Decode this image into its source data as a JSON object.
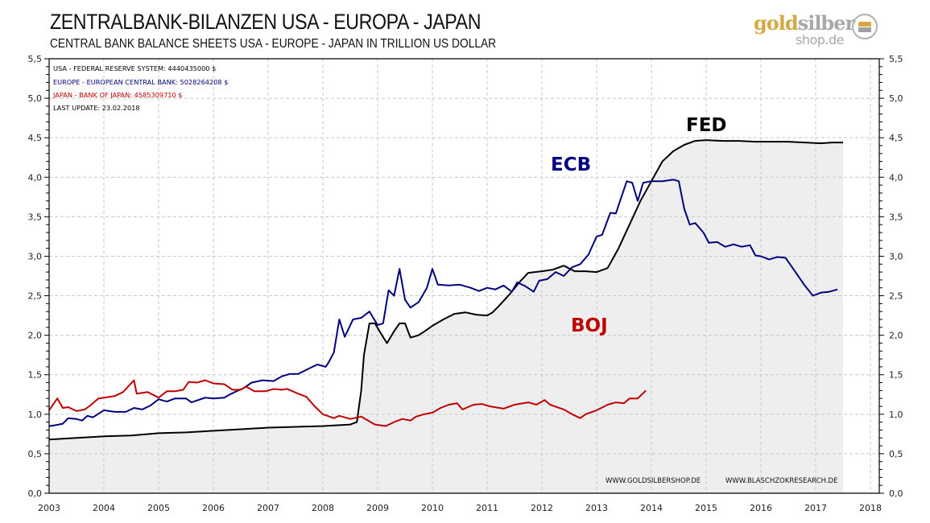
{
  "header": {
    "title": "ZENTRALBANK-BILANZEN  USA - EUROPA - JAPAN",
    "subtitle": "CENTRAL BANK BALANCE SHEETS USA - EUROPE - JAPAN IN TRILLION US DOLLAR"
  },
  "logo": {
    "part1": "gold",
    "part2": "silber",
    "part3": "shop.de",
    "icon": "gold-silver-bars-coin-icon"
  },
  "colors": {
    "fed": "#000000",
    "ecb": "#000080",
    "boj": "#c00000",
    "fill": "#eeeeee",
    "grid": "#c8c8c8"
  },
  "chart_data": {
    "type": "line",
    "title": "ZENTRALBANK-BILANZEN  USA - EUROPA - JAPAN",
    "subtitle": "CENTRAL BANK BALANCE SHEETS USA - EUROPE - JAPAN IN TRILLION US DOLLAR",
    "xlabel": "",
    "ylabel": "",
    "xlim": [
      2003,
      2018.15
    ],
    "ylim": [
      0,
      5.5
    ],
    "x_ticks": [
      "2003",
      "2004",
      "2005",
      "2006",
      "2007",
      "2008",
      "2009",
      "2010",
      "2011",
      "2012",
      "2013",
      "2014",
      "2015",
      "2016",
      "2017",
      "2018"
    ],
    "y_ticks": [
      "0,0",
      "0,5",
      "1,0",
      "1,5",
      "2,0",
      "2,5",
      "3,0",
      "3,5",
      "4,0",
      "4,5",
      "5,0",
      "5,5"
    ],
    "grid": true,
    "legend": [
      "USA - FEDERAL RESERVE SYSTEM: 4440435000  $",
      "EUROPE - EUROPEAN CENTRAL BANK: 5028264208  $",
      "JAPAN  - BANK OF JAPAN: 4585309710  $",
      "LAST UPDATE: 23.02.2018"
    ],
    "legend_position": "top-left",
    "annotations": [
      "FED",
      "ECB",
      "BOJ"
    ],
    "credits": [
      "WWW.GOLDSILBERSHOP.DE",
      "WWW.BLASCHZOKRESEARCH.DE"
    ],
    "series": [
      {
        "name": "FED",
        "label": "FED",
        "filled": true,
        "points": [
          [
            2003.0,
            0.68
          ],
          [
            2003.5,
            0.7
          ],
          [
            2004.0,
            0.72
          ],
          [
            2004.5,
            0.73
          ],
          [
            2005.0,
            0.76
          ],
          [
            2005.5,
            0.77
          ],
          [
            2006.0,
            0.79
          ],
          [
            2006.5,
            0.81
          ],
          [
            2007.0,
            0.83
          ],
          [
            2007.5,
            0.84
          ],
          [
            2008.0,
            0.85
          ],
          [
            2008.5,
            0.87
          ],
          [
            2008.62,
            0.9
          ],
          [
            2008.7,
            1.3
          ],
          [
            2008.75,
            1.75
          ],
          [
            2008.85,
            2.15
          ],
          [
            2008.95,
            2.15
          ],
          [
            2009.08,
            2.0
          ],
          [
            2009.17,
            1.9
          ],
          [
            2009.3,
            2.05
          ],
          [
            2009.4,
            2.15
          ],
          [
            2009.5,
            2.15
          ],
          [
            2009.6,
            1.97
          ],
          [
            2009.75,
            2.0
          ],
          [
            2009.9,
            2.07
          ],
          [
            2010.0,
            2.12
          ],
          [
            2010.2,
            2.2
          ],
          [
            2010.4,
            2.27
          ],
          [
            2010.6,
            2.29
          ],
          [
            2010.8,
            2.26
          ],
          [
            2011.0,
            2.25
          ],
          [
            2011.1,
            2.29
          ],
          [
            2011.2,
            2.36
          ],
          [
            2011.4,
            2.51
          ],
          [
            2011.6,
            2.68
          ],
          [
            2011.75,
            2.79
          ],
          [
            2012.0,
            2.81
          ],
          [
            2012.2,
            2.83
          ],
          [
            2012.4,
            2.88
          ],
          [
            2012.6,
            2.81
          ],
          [
            2012.8,
            2.81
          ],
          [
            2013.0,
            2.8
          ],
          [
            2013.2,
            2.85
          ],
          [
            2013.4,
            3.1
          ],
          [
            2013.6,
            3.4
          ],
          [
            2013.8,
            3.7
          ],
          [
            2014.0,
            3.95
          ],
          [
            2014.2,
            4.2
          ],
          [
            2014.4,
            4.33
          ],
          [
            2014.6,
            4.41
          ],
          [
            2014.8,
            4.46
          ],
          [
            2015.0,
            4.47
          ],
          [
            2015.3,
            4.46
          ],
          [
            2015.6,
            4.46
          ],
          [
            2015.9,
            4.45
          ],
          [
            2016.2,
            4.45
          ],
          [
            2016.5,
            4.45
          ],
          [
            2016.8,
            4.44
          ],
          [
            2017.1,
            4.43
          ],
          [
            2017.3,
            4.44
          ],
          [
            2017.5,
            4.44
          ]
        ]
      },
      {
        "name": "ECB",
        "label": "ECB",
        "filled": false,
        "points": [
          [
            2003.0,
            0.85
          ],
          [
            2003.1,
            0.86
          ],
          [
            2003.25,
            0.88
          ],
          [
            2003.35,
            0.95
          ],
          [
            2003.5,
            0.94
          ],
          [
            2003.6,
            0.92
          ],
          [
            2003.7,
            0.98
          ],
          [
            2003.8,
            0.96
          ],
          [
            2004.0,
            1.05
          ],
          [
            2004.2,
            1.03
          ],
          [
            2004.4,
            1.03
          ],
          [
            2004.55,
            1.08
          ],
          [
            2004.7,
            1.06
          ],
          [
            2004.85,
            1.11
          ],
          [
            2005.0,
            1.19
          ],
          [
            2005.15,
            1.16
          ],
          [
            2005.3,
            1.2
          ],
          [
            2005.5,
            1.2
          ],
          [
            2005.6,
            1.15
          ],
          [
            2005.85,
            1.21
          ],
          [
            2006.0,
            1.2
          ],
          [
            2006.2,
            1.21
          ],
          [
            2006.3,
            1.25
          ],
          [
            2006.45,
            1.3
          ],
          [
            2006.55,
            1.33
          ],
          [
            2006.7,
            1.4
          ],
          [
            2006.9,
            1.43
          ],
          [
            2007.1,
            1.42
          ],
          [
            2007.25,
            1.48
          ],
          [
            2007.4,
            1.51
          ],
          [
            2007.55,
            1.51
          ],
          [
            2007.75,
            1.58
          ],
          [
            2007.9,
            1.63
          ],
          [
            2008.05,
            1.6
          ],
          [
            2008.1,
            1.65
          ],
          [
            2008.2,
            1.78
          ],
          [
            2008.3,
            2.2
          ],
          [
            2008.4,
            1.98
          ],
          [
            2008.55,
            2.2
          ],
          [
            2008.7,
            2.22
          ],
          [
            2008.85,
            2.3
          ],
          [
            2009.0,
            2.13
          ],
          [
            2009.1,
            2.15
          ],
          [
            2009.2,
            2.57
          ],
          [
            2009.3,
            2.5
          ],
          [
            2009.4,
            2.84
          ],
          [
            2009.5,
            2.45
          ],
          [
            2009.6,
            2.35
          ],
          [
            2009.75,
            2.42
          ],
          [
            2009.9,
            2.6
          ],
          [
            2010.0,
            2.84
          ],
          [
            2010.1,
            2.64
          ],
          [
            2010.3,
            2.63
          ],
          [
            2010.5,
            2.64
          ],
          [
            2010.7,
            2.6
          ],
          [
            2010.85,
            2.56
          ],
          [
            2011.0,
            2.6
          ],
          [
            2011.15,
            2.58
          ],
          [
            2011.3,
            2.63
          ],
          [
            2011.45,
            2.55
          ],
          [
            2011.55,
            2.67
          ],
          [
            2011.7,
            2.62
          ],
          [
            2011.85,
            2.55
          ],
          [
            2011.95,
            2.69
          ],
          [
            2012.1,
            2.71
          ],
          [
            2012.25,
            2.8
          ],
          [
            2012.4,
            2.75
          ],
          [
            2012.55,
            2.86
          ],
          [
            2012.7,
            2.9
          ],
          [
            2012.85,
            3.02
          ],
          [
            2013.0,
            3.25
          ],
          [
            2013.1,
            3.27
          ],
          [
            2013.25,
            3.55
          ],
          [
            2013.35,
            3.54
          ],
          [
            2013.55,
            3.95
          ],
          [
            2013.65,
            3.93
          ],
          [
            2013.75,
            3.7
          ],
          [
            2013.85,
            3.93
          ],
          [
            2014.0,
            3.95
          ],
          [
            2014.2,
            3.95
          ],
          [
            2014.4,
            3.97
          ],
          [
            2014.5,
            3.95
          ]
        ]
      },
      {
        "name": "BOJ",
        "label": "BOJ",
        "filled": false,
        "points": [
          [
            2003.0,
            1.05
          ],
          [
            2003.15,
            1.2
          ],
          [
            2003.25,
            1.08
          ],
          [
            2003.35,
            1.09
          ],
          [
            2003.5,
            1.04
          ],
          [
            2003.65,
            1.06
          ],
          [
            2003.75,
            1.11
          ],
          [
            2003.9,
            1.2
          ],
          [
            2004.0,
            1.21
          ],
          [
            2004.2,
            1.23
          ],
          [
            2004.35,
            1.28
          ],
          [
            2004.55,
            1.43
          ],
          [
            2004.6,
            1.26
          ],
          [
            2004.8,
            1.28
          ],
          [
            2005.0,
            1.21
          ],
          [
            2005.15,
            1.29
          ],
          [
            2005.3,
            1.29
          ],
          [
            2005.45,
            1.31
          ],
          [
            2005.55,
            1.41
          ],
          [
            2005.7,
            1.4
          ],
          [
            2005.85,
            1.43
          ],
          [
            2006.0,
            1.39
          ],
          [
            2006.2,
            1.38
          ],
          [
            2006.35,
            1.31
          ],
          [
            2006.5,
            1.31
          ],
          [
            2006.6,
            1.35
          ],
          [
            2006.75,
            1.29
          ],
          [
            2006.95,
            1.29
          ],
          [
            2007.1,
            1.32
          ],
          [
            2007.25,
            1.31
          ],
          [
            2007.35,
            1.32
          ],
          [
            2007.55,
            1.26
          ],
          [
            2007.7,
            1.22
          ],
          [
            2007.85,
            1.1
          ],
          [
            2008.0,
            1.0
          ],
          [
            2008.2,
            0.95
          ],
          [
            2008.3,
            0.98
          ],
          [
            2008.5,
            0.94
          ],
          [
            2008.7,
            0.97
          ],
          [
            2008.95,
            0.87
          ],
          [
            2009.15,
            0.85
          ],
          [
            2009.3,
            0.9
          ],
          [
            2009.45,
            0.94
          ],
          [
            2009.6,
            0.92
          ],
          [
            2009.7,
            0.97
          ],
          [
            2009.85,
            1.0
          ],
          [
            2010.0,
            1.02
          ],
          [
            2010.15,
            1.08
          ],
          [
            2010.3,
            1.12
          ],
          [
            2010.45,
            1.14
          ],
          [
            2010.55,
            1.06
          ],
          [
            2010.75,
            1.12
          ],
          [
            2010.9,
            1.13
          ],
          [
            2011.05,
            1.1
          ],
          [
            2011.3,
            1.07
          ],
          [
            2011.5,
            1.12
          ],
          [
            2011.75,
            1.15
          ],
          [
            2011.9,
            1.12
          ],
          [
            2012.05,
            1.18
          ],
          [
            2012.15,
            1.12
          ],
          [
            2012.4,
            1.06
          ],
          [
            2012.55,
            1.0
          ],
          [
            2012.7,
            0.95
          ],
          [
            2012.8,
            1.0
          ],
          [
            2013.0,
            1.05
          ],
          [
            2013.2,
            1.12
          ],
          [
            2013.35,
            1.15
          ],
          [
            2013.5,
            1.14
          ],
          [
            2013.6,
            1.2
          ],
          [
            2013.75,
            1.2
          ],
          [
            2013.9,
            1.3
          ]
        ]
      }
    ]
  },
  "series_overrides": {
    "note": "continuation points below are appended to each series"
  },
  "series_continuation": {
    "FED": [],
    "ECB": [
      [
        2014.6,
        3.6
      ],
      [
        2014.7,
        3.4
      ],
      [
        2014.8,
        3.42
      ],
      [
        2014.95,
        3.3
      ],
      [
        2015.05,
        3.17
      ],
      [
        2015.2,
        3.18
      ],
      [
        2015.35,
        3.12
      ],
      [
        2015.5,
        3.15
      ],
      [
        2015.65,
        3.12
      ],
      [
        2015.8,
        3.14
      ],
      [
        2015.9,
        3.01
      ],
      [
        2016.0,
        3.0
      ],
      [
        2016.15,
        2.96
      ],
      [
        2016.3,
        2.99
      ],
      [
        2016.45,
        2.98
      ],
      [
        2016.6,
        2.83
      ],
      [
        2016.8,
        2.63
      ],
      [
        2016.95,
        2.5
      ],
      [
        2017.1,
        2.54
      ],
      [
        2017.25,
        2.55
      ],
      [
        2017.4,
        2.58
      ]
    ],
    "BOJ": []
  },
  "texts": {
    "credit1": "WWW.GOLDSILBERSHOP.DE",
    "credit2": "WWW.BLASCHZOKRESEARCH.DE"
  }
}
